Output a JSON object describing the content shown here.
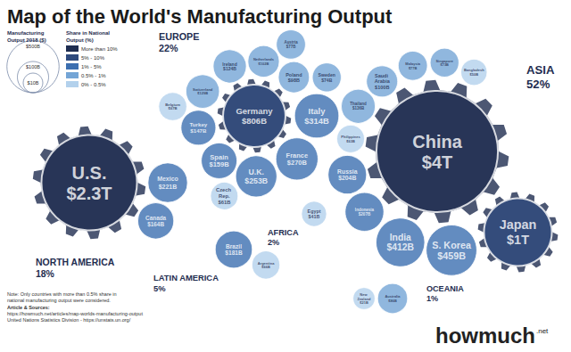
{
  "chart_data": {
    "type": "bubble",
    "title": "Map of the World's Manufacturing Output",
    "size_legend": {
      "title": "Manufacturing Output 2018 ($)",
      "values": [
        500,
        100,
        10
      ],
      "value_labels": [
        "$500B",
        "$100B",
        "$10B"
      ]
    },
    "color_legend": {
      "title": "Share in National Output (%)",
      "categories": [
        "More than 10%",
        "5% - 10%",
        "1% - 5%",
        "0.5% - 1%",
        "0% - 0.5%"
      ],
      "colors": [
        "#1f2d50",
        "#2e4a7d",
        "#3c6fb0",
        "#74a5d6",
        "#b3d1ec"
      ]
    },
    "regions": [
      {
        "name": "EUROPE",
        "share": 22,
        "share_label": "22%",
        "countries": [
          {
            "name": "Germany",
            "value": 806,
            "value_label": "$806B",
            "share_class": "5% - 10%"
          },
          {
            "name": "Italy",
            "value": 314,
            "value_label": "$314B",
            "share_class": "1% - 5%"
          },
          {
            "name": "France",
            "value": 270,
            "value_label": "$270B",
            "share_class": "1% - 5%"
          },
          {
            "name": "U.K.",
            "value": 253,
            "value_label": "$253B",
            "share_class": "1% - 5%"
          },
          {
            "name": "Spain",
            "value": 159,
            "value_label": "$159B",
            "share_class": "1% - 5%"
          },
          {
            "name": "Turkey",
            "value": 147,
            "value_label": "$147B",
            "share_class": "1% - 5%"
          },
          {
            "name": "Switzerland",
            "value": 129,
            "value_label": "$129B",
            "share_class": "0.5% - 1%"
          },
          {
            "name": "Ireland",
            "value": 124,
            "value_label": "$124B",
            "share_class": "0.5% - 1%"
          },
          {
            "name": "Netherlands",
            "value": 102,
            "value_label": "$102B",
            "share_class": "0.5% - 1%"
          },
          {
            "name": "Poland",
            "value": 98,
            "value_label": "$98B",
            "share_class": "0.5% - 1%"
          },
          {
            "name": "Austria",
            "value": 77,
            "value_label": "$77B",
            "share_class": "0.5% - 1%"
          },
          {
            "name": "Sweden",
            "value": 74,
            "value_label": "$74B",
            "share_class": "0.5% - 1%"
          },
          {
            "name": "Belgium",
            "value": 67,
            "value_label": "$67B",
            "share_class": "0% - 0.5%"
          },
          {
            "name": "Czech Rep.",
            "value": 61,
            "value_label": "$61B",
            "share_class": "0% - 0.5%"
          }
        ]
      },
      {
        "name": "ASIA",
        "share": 52,
        "share_label": "52%",
        "countries": [
          {
            "name": "China",
            "value": 4000,
            "value_label": "$4T",
            "share_class": "More than 10%"
          },
          {
            "name": "Japan",
            "value": 1000,
            "value_label": "$1T",
            "share_class": "5% - 10%"
          },
          {
            "name": "S. Korea",
            "value": 459,
            "value_label": "$459B",
            "share_class": "1% - 5%"
          },
          {
            "name": "India",
            "value": 412,
            "value_label": "$412B",
            "share_class": "1% - 5%"
          },
          {
            "name": "Indonesia",
            "value": 207,
            "value_label": "$207B",
            "share_class": "1% - 5%"
          },
          {
            "name": "Russia",
            "value": 204,
            "value_label": "$204B",
            "share_class": "1% - 5%"
          },
          {
            "name": "Thailand",
            "value": 136,
            "value_label": "$136B",
            "share_class": "0.5% - 1%"
          },
          {
            "name": "Saudi Arabia",
            "value": 100,
            "value_label": "$100B",
            "share_class": "0.5% - 1%"
          },
          {
            "name": "Malaysia",
            "value": 77,
            "value_label": "$77B",
            "share_class": "0.5% - 1%"
          },
          {
            "name": "Singapore",
            "value": 73,
            "value_label": "$73B",
            "share_class": "0.5% - 1%"
          },
          {
            "name": "Philippines",
            "value": 63,
            "value_label": "$63B",
            "share_class": "0% - 0.5%"
          },
          {
            "name": "Bangladesh",
            "value": 50,
            "value_label": "$50B",
            "share_class": "0% - 0.5%"
          }
        ]
      },
      {
        "name": "NORTH AMERICA",
        "share": 18,
        "share_label": "18%",
        "countries": [
          {
            "name": "U.S.",
            "value": 2300,
            "value_label": "$2.3T",
            "share_class": "More than 10%"
          },
          {
            "name": "Mexico",
            "value": 221,
            "value_label": "$221B",
            "share_class": "1% - 5%"
          },
          {
            "name": "Canada",
            "value": 164,
            "value_label": "$164B",
            "share_class": "1% - 5%"
          }
        ]
      },
      {
        "name": "LATIN AMERICA",
        "share": 5,
        "share_label": "5%",
        "countries": [
          {
            "name": "Brazil",
            "value": 181,
            "value_label": "$181B",
            "share_class": "1% - 5%"
          },
          {
            "name": "Argentina",
            "value": 66,
            "value_label": "$66B",
            "share_class": "0% - 0.5%"
          }
        ]
      },
      {
        "name": "AFRICA",
        "share": 2,
        "share_label": "2%",
        "countries": [
          {
            "name": "Egypt",
            "value": 41,
            "value_label": "$41B",
            "share_class": "0% - 0.5%"
          }
        ]
      },
      {
        "name": "OCEANIA",
        "share": 1,
        "share_label": "1%",
        "countries": [
          {
            "name": "Australia",
            "value": 86,
            "value_label": "$86B",
            "share_class": "0.5% - 1%"
          },
          {
            "name": "New Zealand",
            "value": 21,
            "value_label": "$21B",
            "share_class": "0% - 0.5%"
          }
        ]
      }
    ],
    "note": "Note: Only countries with more than 0.5% share in national manufacturing output were considered.",
    "sources_title": "Article & Sources:",
    "sources": [
      "https://howmuch.net/articles/map-worlds-manufacturing-output",
      "United Nations Statistics Division - https://unstats.un.org/"
    ],
    "brand": "howmuch.net"
  }
}
